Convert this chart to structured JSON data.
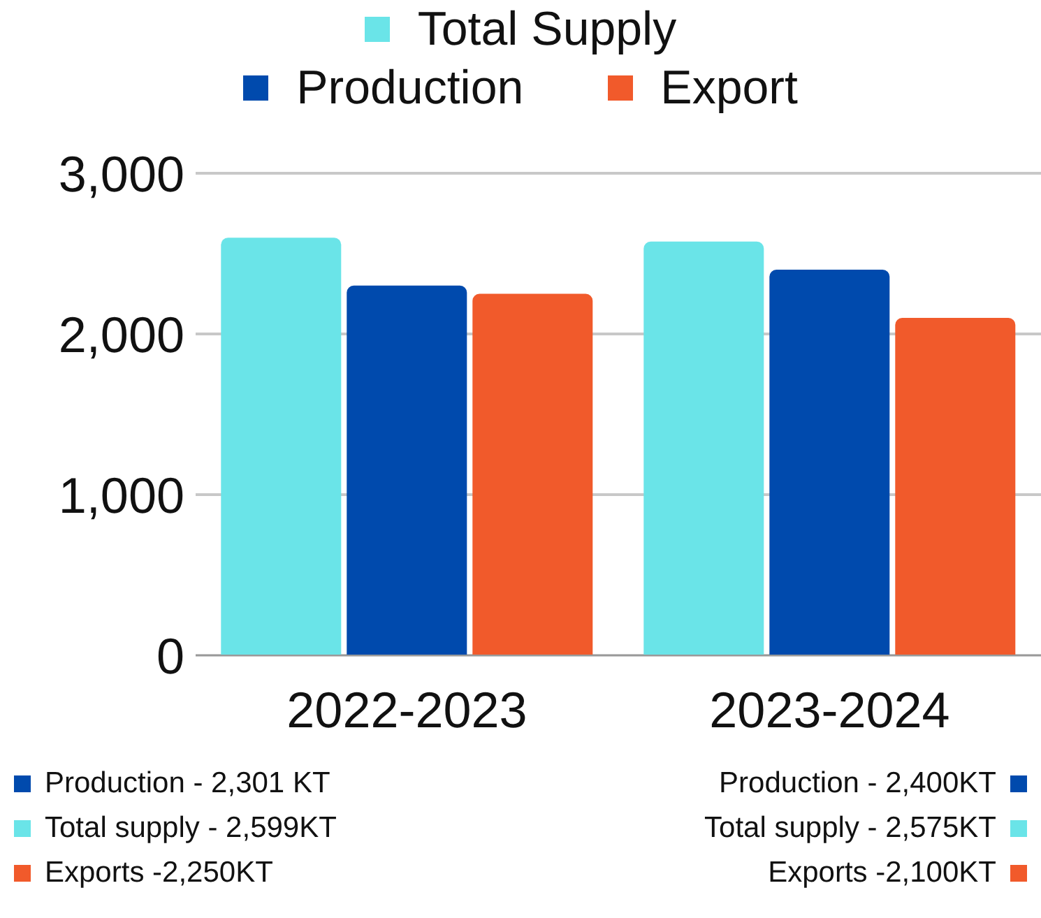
{
  "chart_data": {
    "type": "bar",
    "categories": [
      "2022-2023",
      "2023-2024"
    ],
    "series": [
      {
        "name": "Total Supply",
        "color": "#6ae4e8",
        "values": [
          2599,
          2575
        ]
      },
      {
        "name": "Production",
        "color": "#004aad",
        "values": [
          2301,
          2400
        ]
      },
      {
        "name": "Export",
        "color": "#f15a2b",
        "values": [
          2250,
          2100
        ]
      }
    ],
    "ylim": [
      0,
      3000
    ],
    "yticks": [
      {
        "value": 0,
        "label": "0"
      },
      {
        "value": 1000,
        "label": "1,000"
      },
      {
        "value": 2000,
        "label": "2,000"
      },
      {
        "value": 3000,
        "label": "3,000"
      }
    ],
    "grid": "y",
    "legend": "top",
    "annotations": [
      "Production - 2,301 KT",
      "Production - 2,400KT",
      "Total supply - 2,599KT",
      "Total supply - 2,575KT",
      "Exports -2,250KT",
      "Exports -2,100KT"
    ]
  }
}
